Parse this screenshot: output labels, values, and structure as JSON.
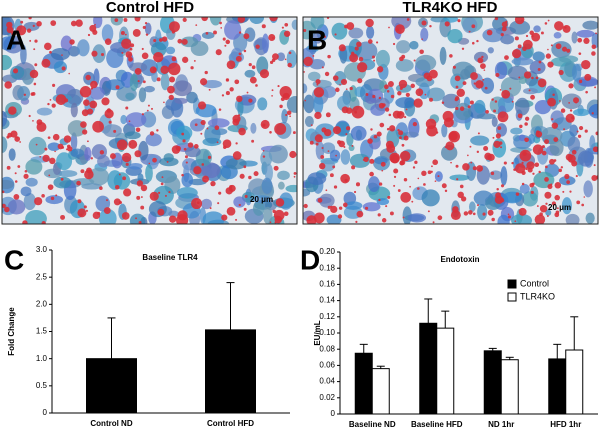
{
  "panels": [
    {
      "letter": "A",
      "title": "Control HFD",
      "scale": "20 μm"
    },
    {
      "letter": "B",
      "title": "TLR4KO HFD",
      "scale": "20 μm"
    },
    {
      "letter": "C"
    },
    {
      "letter": "D"
    }
  ],
  "chart_data": [
    {
      "type": "bar",
      "title": "Baseline TLR4",
      "y_label": "Fold Change",
      "categories": [
        "Control ND",
        "Control HFD"
      ],
      "values": [
        1.0,
        1.53
      ],
      "errors": [
        0.75,
        0.87
      ],
      "color": "#000000",
      "ylim": [
        0,
        3.0
      ],
      "yticks": [
        0,
        0.5,
        {
          "value": 1.0,
          "label": "1.0"
        },
        1.5,
        {
          "value": 2.0,
          "label": "2.0"
        },
        2.5,
        {
          "value": 3.0,
          "label": "3.0"
        }
      ]
    },
    {
      "type": "bar",
      "title": "Endotoxin",
      "y_label": "EU/mL",
      "categories": [
        "Baseline ND",
        "Baseline HFD",
        "ND 1hr",
        "HFD 1hr"
      ],
      "series": [
        {
          "name": "Control",
          "color": "#000000",
          "values": [
            0.075,
            0.112,
            0.078,
            0.068
          ],
          "errors": [
            0.011,
            0.03,
            0.003,
            0.018
          ]
        },
        {
          "name": "TLR4KO",
          "color": "#ffffff",
          "values": [
            0.056,
            0.106,
            0.067,
            0.079
          ],
          "errors": [
            0.003,
            0.021,
            0.003,
            0.041
          ]
        }
      ],
      "ylim": [
        0,
        0.2
      ],
      "yticks": [
        0,
        0.02,
        0.04,
        0.06,
        0.08,
        {
          "value": 0.1,
          "label": "0.10"
        },
        0.12,
        0.14,
        0.16,
        0.18,
        {
          "value": 0.2,
          "label": "0.20"
        }
      ],
      "legend": "upper right"
    }
  ]
}
